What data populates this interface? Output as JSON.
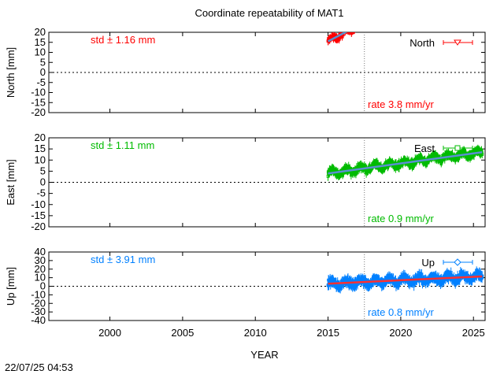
{
  "timestamp": "22/07/25 04:53",
  "chart_data": {
    "type": "scatter",
    "title": "Coordinate repeatability of MAT1",
    "xlabel": "YEAR",
    "xlim": [
      1995.8,
      2025.8
    ],
    "xticks": [
      2000,
      2005,
      2010,
      2015,
      2020,
      2025
    ],
    "xtick_labels": [
      "2000",
      "2005",
      "2010",
      "2015",
      "2020",
      "2025"
    ],
    "marker_line_x": 2017.5,
    "panels": [
      {
        "name": "north",
        "ylabel": "North [mm]",
        "ylim": [
          -20,
          20
        ],
        "yticks": [
          20,
          15,
          10,
          5,
          0,
          -5,
          -10,
          -15,
          -20
        ],
        "ytick_labels": [
          "20",
          "15",
          "10",
          "5",
          "0",
          "-5",
          "-10",
          "-15",
          "-20"
        ],
        "color": "#ff0000",
        "fit_color": "#5a8fd0",
        "std_label": "std ± 1.16 mm",
        "rate_label": "rate  3.8 mm/yr",
        "legend": "North",
        "legend_marker": "triangle-down",
        "data_start": 2015.0,
        "data_end": 2016.8,
        "fit_start": 15.5,
        "rate": 3.8,
        "noise": 3.0
      },
      {
        "name": "east",
        "ylabel": "East [mm]",
        "ylim": [
          -20,
          20
        ],
        "yticks": [
          20,
          15,
          10,
          5,
          0,
          -5,
          -10,
          -15,
          -20
        ],
        "ytick_labels": [
          "20",
          "15",
          "10",
          "5",
          "0",
          "-5",
          "-10",
          "-15",
          "-20"
        ],
        "color": "#00bb00",
        "fit_color": "#5a8fd0",
        "std_label": "std ± 1.11 mm",
        "rate_label": "rate  0.9 mm/yr",
        "legend": "East",
        "legend_marker": "square",
        "data_start": 2015.0,
        "data_end": 2025.6,
        "fit_start": 4.0,
        "rate": 0.9,
        "noise": 3.0
      },
      {
        "name": "up",
        "ylabel": "Up [mm]",
        "ylim": [
          -40,
          40
        ],
        "yticks": [
          40,
          30,
          20,
          10,
          0,
          -10,
          -20,
          -30,
          -40
        ],
        "ytick_labels": [
          "40",
          "30",
          "20",
          "10",
          "0",
          "-10",
          "-20",
          "-30",
          "-40"
        ],
        "color": "#0080ff",
        "fit_color": "#ff3030",
        "std_label": "std ± 3.91 mm",
        "rate_label": "rate  0.8 mm/yr",
        "legend": "Up",
        "legend_marker": "diamond",
        "data_start": 2015.0,
        "data_end": 2025.6,
        "fit_start": 3.0,
        "rate": 0.8,
        "noise": 9.0
      }
    ]
  }
}
